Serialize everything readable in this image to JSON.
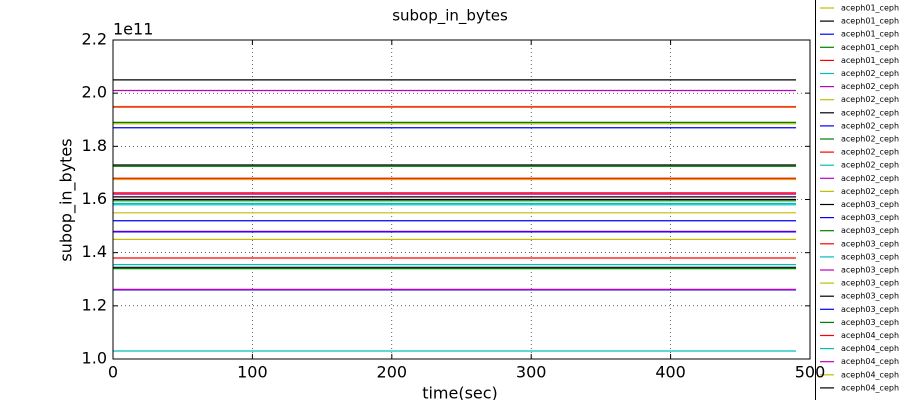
{
  "chart_data": {
    "type": "line",
    "title": "subop_in_bytes",
    "x_label": "time(sec)",
    "y_label": "subop_in_bytes",
    "y_offset_text": "1e11",
    "x": [
      0,
      490
    ],
    "xlim": [
      0,
      500
    ],
    "xticks": [
      0,
      100,
      200,
      300,
      400,
      500
    ],
    "ylim": [
      1.0,
      2.2
    ],
    "yticks": [
      {
        "value": 1.0,
        "label": "1.0"
      },
      {
        "value": 1.2,
        "label": "1.2"
      },
      {
        "value": 1.4,
        "label": "1.4"
      },
      {
        "value": 1.6,
        "label": "1.6"
      },
      {
        "value": 1.8,
        "label": "1.8"
      },
      {
        "value": 2.0,
        "label": "2.0"
      },
      {
        "value": 2.2,
        "label": "2.2"
      }
    ],
    "grid": true,
    "legend": "right",
    "series": [
      {
        "name": "aceph01_ceph",
        "color": "#bfbf00",
        "values": [
          1.95,
          1.95
        ]
      },
      {
        "name": "aceph01_ceph",
        "color": "#000000",
        "values": [
          2.05,
          2.05
        ]
      },
      {
        "name": "aceph01_ceph",
        "color": "#0000ff",
        "values": [
          1.87,
          1.87
        ]
      },
      {
        "name": "aceph01_ceph",
        "color": "#008000",
        "values": [
          1.89,
          1.89
        ]
      },
      {
        "name": "aceph01_ceph",
        "color": "#ff0000",
        "values": [
          1.948,
          1.948
        ]
      },
      {
        "name": "aceph02_ceph",
        "color": "#00bfbf",
        "values": [
          1.03,
          1.03
        ]
      },
      {
        "name": "aceph02_ceph",
        "color": "#bf00bf",
        "values": [
          2.01,
          2.01
        ]
      },
      {
        "name": "aceph02_ceph",
        "color": "#bfbf00",
        "values": [
          1.885,
          1.885
        ]
      },
      {
        "name": "aceph02_ceph",
        "color": "#000000",
        "values": [
          1.73,
          1.73
        ]
      },
      {
        "name": "aceph02_ceph",
        "color": "#0000ff",
        "values": [
          1.26,
          1.26
        ]
      },
      {
        "name": "aceph02_ceph",
        "color": "#008000",
        "values": [
          1.725,
          1.725
        ]
      },
      {
        "name": "aceph02_ceph",
        "color": "#ff0000",
        "values": [
          1.68,
          1.68
        ]
      },
      {
        "name": "aceph02_ceph",
        "color": "#00bfbf",
        "values": [
          1.355,
          1.355
        ]
      },
      {
        "name": "aceph02_ceph",
        "color": "#bf00bf",
        "values": [
          1.48,
          1.48
        ]
      },
      {
        "name": "aceph02_ceph",
        "color": "#bfbf00",
        "values": [
          1.55,
          1.55
        ]
      },
      {
        "name": "aceph03_ceph",
        "color": "#000000",
        "values": [
          1.6,
          1.6
        ]
      },
      {
        "name": "aceph03_ceph",
        "color": "#0000ff",
        "values": [
          1.52,
          1.52
        ]
      },
      {
        "name": "aceph03_ceph",
        "color": "#008000",
        "values": [
          1.34,
          1.34
        ]
      },
      {
        "name": "aceph03_ceph",
        "color": "#ff0000",
        "values": [
          1.38,
          1.38
        ]
      },
      {
        "name": "aceph03_ceph",
        "color": "#00bfbf",
        "values": [
          1.58,
          1.58
        ]
      },
      {
        "name": "aceph03_ceph",
        "color": "#bf00bf",
        "values": [
          1.62,
          1.62
        ]
      },
      {
        "name": "aceph03_ceph",
        "color": "#bfbf00",
        "values": [
          1.45,
          1.45
        ]
      },
      {
        "name": "aceph03_ceph",
        "color": "#000000",
        "values": [
          1.345,
          1.345
        ]
      },
      {
        "name": "aceph03_ceph",
        "color": "#0000ff",
        "values": [
          1.478,
          1.478
        ]
      },
      {
        "name": "aceph03_ceph",
        "color": "#008000",
        "values": [
          1.595,
          1.595
        ]
      },
      {
        "name": "aceph04_ceph",
        "color": "#ff0000",
        "values": [
          1.625,
          1.625
        ]
      },
      {
        "name": "aceph04_ceph",
        "color": "#00bfbf",
        "values": [
          1.585,
          1.585
        ]
      },
      {
        "name": "aceph04_ceph",
        "color": "#bf00bf",
        "values": [
          1.262,
          1.262
        ]
      },
      {
        "name": "aceph04_ceph",
        "color": "#bfbf00",
        "values": [
          1.675,
          1.675
        ]
      },
      {
        "name": "aceph04_ceph",
        "color": "#000000",
        "values": [
          1.61,
          1.61
        ]
      }
    ]
  }
}
